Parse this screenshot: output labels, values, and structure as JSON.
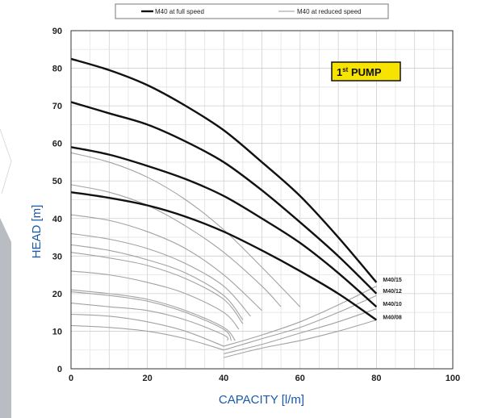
{
  "chart_data": {
    "type": "line",
    "title": "",
    "xlabel": "CAPACITY [l/m]",
    "ylabel": "HEAD [m]",
    "xlim": [
      0,
      100
    ],
    "ylim": [
      0,
      90
    ],
    "x_ticks": [
      0,
      20,
      40,
      60,
      80,
      100
    ],
    "y_ticks": [
      0,
      10,
      20,
      30,
      40,
      50,
      60,
      70,
      80,
      90
    ],
    "grid": true,
    "legend_position": "top",
    "legend": [
      {
        "label": "M40 at full speed",
        "style": "thick"
      },
      {
        "label": "M40 at reduced speed",
        "style": "thin"
      }
    ],
    "badge": {
      "main": "1",
      "sup": "st",
      "rest": " PUMP"
    },
    "series": [
      {
        "name": "M40/15",
        "style": "thick",
        "x": [
          0,
          10,
          20,
          30,
          40,
          50,
          60,
          70,
          80
        ],
        "y": [
          82.5,
          79.5,
          75.5,
          70,
          63.5,
          55,
          46,
          35,
          23
        ]
      },
      {
        "name": "M40/12",
        "style": "thick",
        "x": [
          0,
          10,
          20,
          30,
          40,
          50,
          60,
          70,
          80
        ],
        "y": [
          71,
          68,
          65,
          60.5,
          55,
          47.5,
          39,
          30,
          20
        ]
      },
      {
        "name": "M40/10",
        "style": "thick",
        "x": [
          0,
          10,
          20,
          30,
          40,
          50,
          60,
          70,
          80
        ],
        "y": [
          59,
          57,
          54,
          50.5,
          46,
          40,
          33.5,
          25.5,
          16.5
        ]
      },
      {
        "name": "M40/08",
        "style": "thick",
        "x": [
          0,
          10,
          20,
          30,
          40,
          50,
          60,
          70,
          80
        ],
        "y": [
          47,
          45.5,
          43.5,
          40.5,
          36.5,
          31.5,
          26,
          20,
          13
        ]
      },
      {
        "style": "thin",
        "x": [
          0,
          10,
          20,
          30,
          40,
          50,
          60
        ],
        "y": [
          57.5,
          55,
          51,
          45,
          37,
          27,
          16.5
        ]
      },
      {
        "style": "thin",
        "x": [
          0,
          10,
          20,
          30,
          40,
          50,
          55
        ],
        "y": [
          49,
          47,
          43.5,
          38,
          31,
          22,
          16.5
        ]
      },
      {
        "style": "thin",
        "x": [
          0,
          10,
          20,
          30,
          40,
          50
        ],
        "y": [
          41,
          39.5,
          36.5,
          32,
          25,
          15.5
        ]
      },
      {
        "style": "thin",
        "x": [
          0,
          10,
          20,
          30,
          40,
          47
        ],
        "y": [
          36,
          34.5,
          32,
          28,
          22,
          14
        ]
      },
      {
        "style": "thin",
        "x": [
          0,
          10,
          20,
          30,
          40,
          45
        ],
        "y": [
          33,
          31.5,
          29,
          25.5,
          19.5,
          13
        ]
      },
      {
        "style": "thin",
        "x": [
          0,
          10,
          20,
          30,
          40,
          45
        ],
        "y": [
          31,
          29.5,
          27.5,
          24,
          18.5,
          12
        ]
      },
      {
        "style": "thin",
        "x": [
          0,
          10,
          20,
          30,
          40,
          44
        ],
        "y": [
          26,
          25,
          23,
          20,
          15,
          10.5
        ]
      },
      {
        "style": "thin",
        "x": [
          0,
          10,
          20,
          30,
          40,
          43
        ],
        "y": [
          21,
          20,
          18.5,
          15.5,
          11,
          7.5
        ]
      },
      {
        "style": "thin",
        "x": [
          0,
          10,
          20,
          30,
          40,
          42
        ],
        "y": [
          20.5,
          19.5,
          18,
          15,
          10.5,
          7.5
        ]
      },
      {
        "style": "thin",
        "x": [
          0,
          10,
          20,
          30,
          40,
          41
        ],
        "y": [
          17.5,
          16.5,
          15.5,
          13,
          9,
          7.5
        ]
      },
      {
        "style": "thin",
        "x": [
          0,
          10,
          20,
          30,
          40
        ],
        "y": [
          14.5,
          14,
          12.5,
          10,
          6
        ]
      },
      {
        "style": "thin",
        "x": [
          0,
          10,
          20,
          30,
          40
        ],
        "y": [
          11.5,
          11,
          10,
          8,
          5
        ]
      },
      {
        "style": "thin",
        "x": [
          40,
          50,
          60,
          70,
          80
        ],
        "y": [
          6,
          9,
          12.5,
          17,
          22
        ]
      },
      {
        "style": "thin",
        "x": [
          40,
          50,
          60,
          70,
          80
        ],
        "y": [
          5,
          8,
          11,
          15,
          19.5
        ]
      },
      {
        "style": "thin",
        "x": [
          40,
          50,
          60,
          70,
          80
        ],
        "y": [
          4,
          6.5,
          9.5,
          12.5,
          16
        ]
      },
      {
        "style": "thin",
        "x": [
          40,
          50,
          60,
          70,
          80
        ],
        "y": [
          3,
          5.5,
          7.5,
          10,
          13
        ]
      }
    ]
  }
}
